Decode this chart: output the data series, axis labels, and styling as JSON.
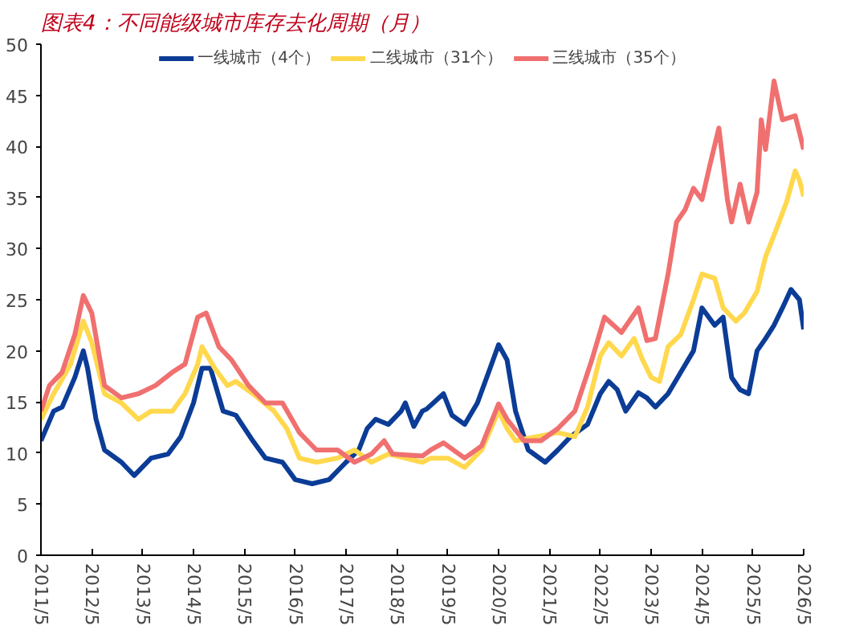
{
  "chart_data": {
    "type": "line",
    "title": "图表4：不同能级城市库存去化周期（月）",
    "xlim": [
      "2011-05",
      "2026-05"
    ],
    "xticks": [
      {
        "value": "2011-05",
        "label": "2011/5"
      },
      {
        "value": "2012-05",
        "label": "2012/5"
      },
      {
        "value": "2013-05",
        "label": "2013/5"
      },
      {
        "value": "2014-05",
        "label": "2014/5"
      },
      {
        "value": "2015-05",
        "label": "2015/5"
      },
      {
        "value": "2016-05",
        "label": "2016/5"
      },
      {
        "value": "2017-05",
        "label": "2017/5"
      },
      {
        "value": "2018-05",
        "label": "2018/5"
      },
      {
        "value": "2019-05",
        "label": "2019/5"
      },
      {
        "value": "2020-05",
        "label": "2020/5"
      },
      {
        "value": "2021-05",
        "label": "2021/5"
      },
      {
        "value": "2022-05",
        "label": "2022/5"
      },
      {
        "value": "2023-05",
        "label": "2023/5"
      },
      {
        "value": "2024-05",
        "label": "2024/5"
      },
      {
        "value": "2025-05",
        "label": "2025/5"
      },
      {
        "value": "2026-05",
        "label": "2026/5"
      }
    ],
    "ylim": [
      0,
      50
    ],
    "yticks": [
      0,
      5,
      10,
      15,
      20,
      25,
      30,
      35,
      40,
      45,
      50
    ],
    "grid": false,
    "legend": "top",
    "marker": "none",
    "line_style": "solid",
    "series": [
      {
        "name": "一线城市（4个）",
        "color": "#0b3c96",
        "x": [
          "2011-05",
          "2011-08",
          "2011-10",
          "2012-01",
          "2012-03",
          "2012-04",
          "2012-06",
          "2012-08",
          "2012-12",
          "2013-03",
          "2013-07",
          "2013-11",
          "2014-02",
          "2014-05",
          "2014-07",
          "2014-09",
          "2014-12",
          "2015-03",
          "2015-07",
          "2015-10",
          "2016-02",
          "2016-05",
          "2016-09",
          "2017-01",
          "2017-05",
          "2017-08",
          "2017-10",
          "2017-12",
          "2018-03",
          "2018-06",
          "2018-07",
          "2018-09",
          "2018-11",
          "2018-12",
          "2019-04",
          "2019-06",
          "2019-09",
          "2019-12",
          "2020-03",
          "2020-05",
          "2020-07",
          "2020-09",
          "2020-12",
          "2021-04",
          "2021-07",
          "2021-10",
          "2022-02",
          "2022-05",
          "2022-07",
          "2022-09",
          "2022-11",
          "2023-02",
          "2023-04",
          "2023-06",
          "2023-09",
          "2023-12",
          "2024-03",
          "2024-05",
          "2024-08",
          "2024-10",
          "2024-12",
          "2025-02",
          "2025-04",
          "2025-06",
          "2025-08",
          "2025-10",
          "2025-12",
          "2026-02",
          "2026-04",
          "2026-05"
        ],
        "values": [
          11.2,
          14.1,
          14.5,
          17.4,
          20.0,
          18.3,
          13.3,
          10.3,
          9.1,
          7.8,
          9.5,
          9.9,
          11.6,
          14.9,
          18.3,
          18.3,
          14.1,
          13.7,
          11.2,
          9.5,
          9.1,
          7.4,
          7.0,
          7.4,
          9.1,
          10.3,
          12.4,
          13.3,
          12.8,
          14.1,
          14.9,
          12.6,
          14.1,
          14.3,
          15.8,
          13.7,
          12.8,
          14.9,
          18.3,
          20.6,
          19.1,
          14.1,
          10.3,
          9.1,
          10.3,
          11.6,
          12.8,
          15.8,
          17.0,
          16.2,
          14.1,
          15.9,
          15.4,
          14.5,
          15.8,
          17.9,
          20.0,
          24.2,
          22.5,
          23.3,
          17.4,
          16.2,
          15.8,
          20.0,
          21.2,
          22.5,
          24.2,
          26.0,
          25.0,
          22.1
        ]
      },
      {
        "name": "二线城市（31个）",
        "color": "#ffd84d",
        "x": [
          "2011-05",
          "2011-08",
          "2011-12",
          "2012-03",
          "2012-05",
          "2012-08",
          "2012-12",
          "2013-04",
          "2013-07",
          "2013-12",
          "2014-03",
          "2014-06",
          "2014-07",
          "2014-10",
          "2015-01",
          "2015-03",
          "2015-07",
          "2015-12",
          "2016-03",
          "2016-06",
          "2016-10",
          "2017-03",
          "2017-07",
          "2017-11",
          "2018-03",
          "2018-07",
          "2018-11",
          "2019-01",
          "2019-05",
          "2019-09",
          "2020-01",
          "2020-05",
          "2020-07",
          "2020-09",
          "2021-02",
          "2021-07",
          "2021-11",
          "2022-02",
          "2022-05",
          "2022-07",
          "2022-10",
          "2023-01",
          "2023-03",
          "2023-05",
          "2023-07",
          "2023-09",
          "2023-12",
          "2024-03",
          "2024-05",
          "2024-08",
          "2024-10",
          "2025-01",
          "2025-03",
          "2025-06",
          "2025-08",
          "2025-10",
          "2026-01",
          "2026-03",
          "2026-04",
          "2026-05"
        ],
        "values": [
          13.3,
          15.8,
          18.7,
          22.9,
          20.8,
          15.8,
          14.9,
          13.3,
          14.1,
          14.1,
          15.8,
          18.7,
          20.4,
          18.3,
          16.6,
          17.0,
          15.8,
          14.1,
          12.4,
          9.5,
          9.1,
          9.5,
          10.3,
          9.1,
          9.9,
          9.5,
          9.1,
          9.5,
          9.5,
          8.6,
          10.3,
          14.1,
          12.4,
          11.2,
          11.6,
          12.0,
          11.6,
          14.5,
          19.5,
          20.8,
          19.5,
          21.2,
          19.1,
          17.4,
          17.0,
          20.4,
          21.6,
          25.0,
          27.5,
          27.1,
          24.2,
          22.9,
          23.7,
          25.8,
          29.2,
          31.3,
          34.6,
          37.6,
          36.7,
          35.1
        ]
      },
      {
        "name": "三线城市（35个）",
        "color": "#f07070",
        "x": [
          "2011-05",
          "2011-07",
          "2011-10",
          "2012-01",
          "2012-03",
          "2012-05",
          "2012-08",
          "2012-12",
          "2013-04",
          "2013-08",
          "2013-12",
          "2014-03",
          "2014-06",
          "2014-08",
          "2014-11",
          "2015-02",
          "2015-06",
          "2015-10",
          "2016-02",
          "2016-06",
          "2016-10",
          "2017-03",
          "2017-07",
          "2017-11",
          "2018-02",
          "2018-04",
          "2018-11",
          "2019-01",
          "2019-04",
          "2019-09",
          "2020-01",
          "2020-05",
          "2020-07",
          "2020-11",
          "2021-03",
          "2021-07",
          "2021-11",
          "2022-03",
          "2022-06",
          "2022-10",
          "2023-02",
          "2023-04",
          "2023-06",
          "2023-09",
          "2023-11",
          "2024-01",
          "2024-03",
          "2024-05",
          "2024-07",
          "2024-09",
          "2024-11",
          "2024-12",
          "2025-02",
          "2025-04",
          "2025-06",
          "2025-07",
          "2025-08",
          "2025-10",
          "2025-12",
          "2026-03",
          "2026-04",
          "2026-05"
        ],
        "values": [
          14.1,
          16.6,
          17.9,
          21.6,
          25.4,
          23.7,
          16.6,
          15.4,
          15.8,
          16.6,
          17.9,
          18.7,
          23.3,
          23.7,
          20.4,
          19.1,
          16.6,
          14.9,
          14.9,
          12.0,
          10.3,
          10.3,
          9.1,
          9.9,
          11.2,
          9.9,
          9.7,
          10.3,
          11.0,
          9.5,
          10.7,
          14.8,
          13.3,
          11.2,
          11.2,
          12.4,
          14.1,
          19.1,
          23.3,
          21.8,
          24.2,
          21.0,
          21.2,
          27.5,
          32.6,
          33.8,
          35.9,
          34.8,
          38.4,
          41.8,
          34.8,
          32.6,
          36.3,
          32.6,
          35.5,
          42.6,
          39.7,
          46.4,
          42.6,
          43.0,
          41.4,
          39.7
        ]
      }
    ]
  }
}
